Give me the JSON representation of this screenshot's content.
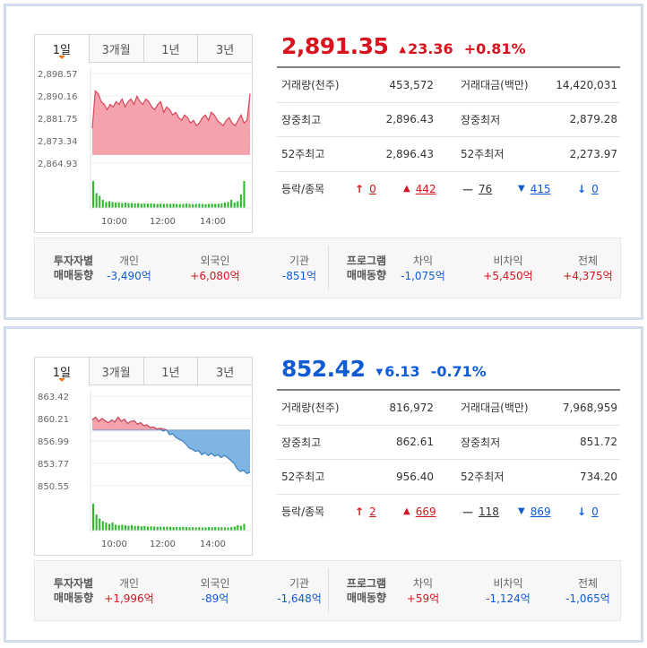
{
  "tabs": [
    "1일",
    "3개월",
    "1년",
    "3년"
  ],
  "colors": {
    "up": "#d9131e",
    "down": "#0f5bd6",
    "volume": "#2eb82e",
    "up_fill": "#f4a3ad",
    "down_fill": "#7fb4e3"
  },
  "indices": [
    {
      "direction": "up",
      "value": "2,891.35",
      "change": "23.36",
      "change_pct": "+0.81%",
      "chart": {
        "y_ticks": [
          "2,898.57",
          "2,890.16",
          "2,881.75",
          "2,873.34",
          "2,864.93"
        ],
        "x_ticks": [
          "10:00",
          "12:00",
          "14:00"
        ],
        "ylim": [
          2864.93,
          2898.57
        ],
        "baseline": 2867.99,
        "series": [
          2878,
          2892,
          2891,
          2888,
          2887,
          2885,
          2887,
          2886,
          2888,
          2887,
          2889,
          2886,
          2888,
          2889,
          2887,
          2890,
          2888,
          2887,
          2889,
          2888,
          2886,
          2885,
          2887,
          2888,
          2884,
          2886,
          2885,
          2883,
          2884,
          2882,
          2881,
          2883,
          2882,
          2880,
          2881,
          2879,
          2880,
          2882,
          2883,
          2881,
          2884,
          2883,
          2881,
          2880,
          2879,
          2881,
          2882,
          2880,
          2879,
          2881,
          2883,
          2880,
          2881,
          2891
        ],
        "volume": [
          1.0,
          0.55,
          0.45,
          0.3,
          0.22,
          0.25,
          0.22,
          0.2,
          0.2,
          0.18,
          0.2,
          0.18,
          0.18,
          0.17,
          0.18,
          0.16,
          0.17,
          0.16,
          0.17,
          0.16,
          0.15,
          0.16,
          0.15,
          0.16,
          0.15,
          0.16,
          0.15,
          0.14,
          0.15,
          0.16,
          0.15,
          0.14,
          0.15,
          0.16,
          0.15,
          0.14,
          0.15,
          0.16,
          0.15,
          0.16,
          0.17,
          0.2,
          0.22,
          0.3,
          0.2,
          0.25,
          0.5,
          1.0
        ]
      },
      "stats": [
        {
          "l1": "거래량(천주)",
          "v1": "453,572",
          "l2": "거래대금(백만)",
          "v2": "14,420,031"
        },
        {
          "l1": "장중최고",
          "v1": "2,896.43",
          "l2": "장중최저",
          "v2": "2,879.28"
        },
        {
          "l1": "52주최고",
          "v1": "2,896.43",
          "l2": "52주최저",
          "v2": "2,273.97"
        }
      ],
      "updown": {
        "label": "등락/종목",
        "upper": "0",
        "up": "442",
        "flat": "76",
        "down": "415",
        "lower": "0"
      },
      "investors": {
        "title1": "투자자별",
        "title2": "매매동향",
        "items": [
          {
            "label": "개인",
            "value": "-3,490억",
            "dir": "down"
          },
          {
            "label": "외국인",
            "value": "+6,080억",
            "dir": "up"
          },
          {
            "label": "기관",
            "value": "-851억",
            "dir": "down"
          }
        ]
      },
      "program": {
        "title1": "프로그램",
        "title2": "매매동향",
        "items": [
          {
            "label": "차익",
            "value": "-1,075억",
            "dir": "down"
          },
          {
            "label": "비차익",
            "value": "+5,450억",
            "dir": "up"
          },
          {
            "label": "전체",
            "value": "+4,375억",
            "dir": "up"
          }
        ]
      }
    },
    {
      "direction": "down",
      "value": "852.42",
      "change": "6.13",
      "change_pct": "-0.71%",
      "chart": {
        "y_ticks": [
          "863.42",
          "860.21",
          "856.99",
          "853.77",
          "850.55"
        ],
        "x_ticks": [
          "10:00",
          "12:00",
          "14:00"
        ],
        "ylim": [
          850.55,
          863.42
        ],
        "baseline": 858.55,
        "series": [
          860.0,
          860.4,
          859.8,
          860.2,
          859.9,
          859.6,
          860.0,
          859.7,
          860.4,
          859.8,
          860.1,
          859.5,
          859.8,
          859.9,
          859.4,
          859.6,
          859.2,
          859.3,
          858.9,
          859.0,
          858.7,
          858.8,
          858.4,
          858.6,
          857.9,
          858.0,
          857.5,
          857.2,
          857.0,
          856.6,
          856.0,
          855.8,
          855.5,
          855.6,
          855.0,
          855.3,
          854.9,
          855.2,
          854.8,
          855.0,
          854.6,
          854.9,
          854.6,
          854.2,
          853.8,
          853.0,
          852.6,
          852.8,
          852.3,
          852.5
        ],
        "volume": [
          1.0,
          0.6,
          0.45,
          0.35,
          0.3,
          0.25,
          0.3,
          0.22,
          0.2,
          0.22,
          0.2,
          0.18,
          0.2,
          0.17,
          0.18,
          0.16,
          0.17,
          0.15,
          0.16,
          0.15,
          0.14,
          0.15,
          0.14,
          0.15,
          0.14,
          0.13,
          0.14,
          0.13,
          0.14,
          0.13,
          0.12,
          0.13,
          0.12,
          0.13,
          0.12,
          0.12,
          0.13,
          0.12,
          0.13,
          0.12,
          0.13,
          0.12,
          0.12,
          0.13,
          0.15,
          0.2,
          0.18,
          0.25
        ]
      },
      "stats": [
        {
          "l1": "거래량(천주)",
          "v1": "816,972",
          "l2": "거래대금(백만)",
          "v2": "7,968,959"
        },
        {
          "l1": "장중최고",
          "v1": "862.61",
          "l2": "장중최저",
          "v2": "851.72"
        },
        {
          "l1": "52주최고",
          "v1": "956.40",
          "l2": "52주최저",
          "v2": "734.20"
        }
      ],
      "updown": {
        "label": "등락/종목",
        "upper": "2",
        "up": "669",
        "flat": "118",
        "down": "869",
        "lower": "0"
      },
      "investors": {
        "title1": "투자자별",
        "title2": "매매동향",
        "items": [
          {
            "label": "개인",
            "value": "+1,996억",
            "dir": "up"
          },
          {
            "label": "외국인",
            "value": "-89억",
            "dir": "down"
          },
          {
            "label": "기관",
            "value": "-1,648억",
            "dir": "down"
          }
        ]
      },
      "program": {
        "title1": "프로그램",
        "title2": "매매동향",
        "items": [
          {
            "label": "차익",
            "value": "+59억",
            "dir": "up"
          },
          {
            "label": "비차익",
            "value": "-1,124억",
            "dir": "down"
          },
          {
            "label": "전체",
            "value": "-1,065억",
            "dir": "down"
          }
        ]
      }
    }
  ]
}
